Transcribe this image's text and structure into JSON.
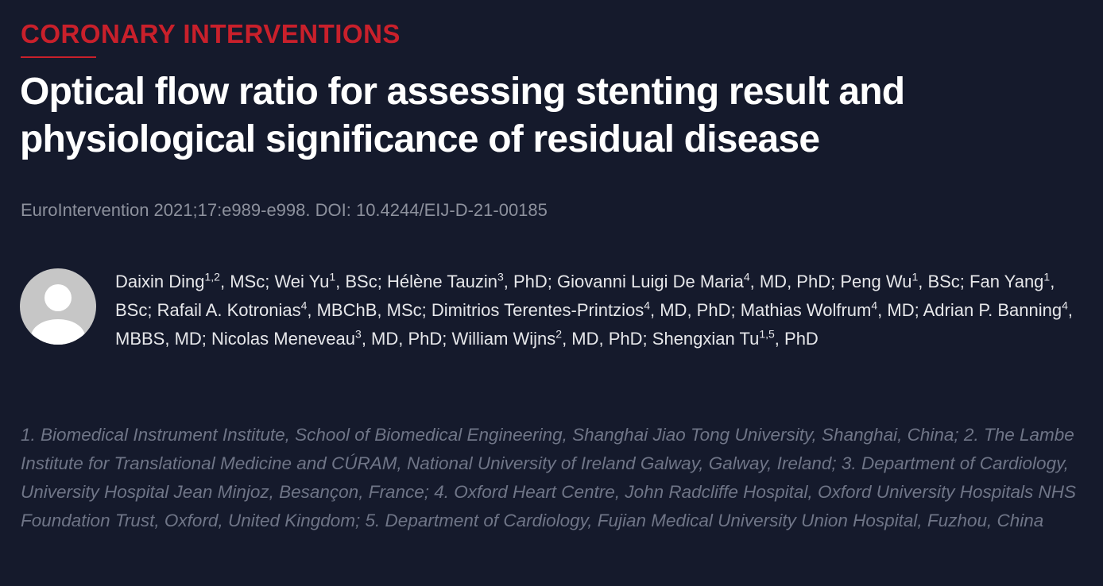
{
  "category": "CORONARY INTERVENTIONS",
  "title": "Optical flow ratio for assessing stenting result and physiological significance of residual disease",
  "citation": "EuroIntervention 2021;17:e989-e998. DOI: 10.4244/EIJ-D-21-00185",
  "authors": [
    {
      "name": "Daixin Ding",
      "sup": "1,2",
      "suffix": ", MSc;"
    },
    {
      "name": "Wei Yu",
      "sup": "1",
      "suffix": ", BSc;"
    },
    {
      "name": "Hélène Tauzin",
      "sup": "3",
      "suffix": ", PhD;"
    },
    {
      "name": "Giovanni Luigi De Maria",
      "sup": "4",
      "suffix": ", MD, PhD;"
    },
    {
      "name": "Peng Wu",
      "sup": "1",
      "suffix": ", BSc;"
    },
    {
      "name": "Fan Yang",
      "sup": "1",
      "suffix": ", BSc;"
    },
    {
      "name": "Rafail A. Kotronias",
      "sup": "4",
      "suffix": ", MBChB, MSc;"
    },
    {
      "name": "Dimitrios Terentes-Printzios",
      "sup": "4",
      "suffix": ", MD, PhD;"
    },
    {
      "name": "Mathias Wolfrum",
      "sup": "4",
      "suffix": ", MD;"
    },
    {
      "name": "Adrian P. Banning",
      "sup": "4",
      "suffix": ", MBBS, MD;"
    },
    {
      "name": "Nicolas Meneveau",
      "sup": "3",
      "suffix": ", MD, PhD;"
    },
    {
      "name": "William Wijns",
      "sup": "2",
      "suffix": ", MD, PhD;"
    },
    {
      "name": "Shengxian Tu",
      "sup": "1,5",
      "suffix": ", PhD"
    }
  ],
  "affiliations": "1. Biomedical Instrument Institute, School of Biomedical Engineering, Shanghai Jiao Tong University, Shanghai, China; 2. The Lambe Institute for Translational Medicine and CÚRAM, National University of Ireland Galway, Galway, Ireland; 3. Department of Cardiology, University Hospital Jean Minjoz, Besançon, France; 4. Oxford Heart Centre, John Radcliffe Hospital, Oxford University Hospitals NHS Foundation Trust, Oxford, United Kingdom; 5. Department of Cardiology, Fujian Medical University Union Hospital, Fuzhou, China"
}
